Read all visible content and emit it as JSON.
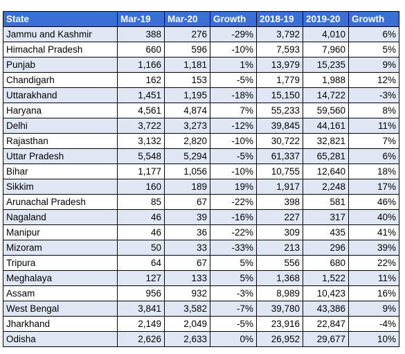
{
  "table": {
    "headers": [
      "State",
      "Mar-19",
      "Mar-20",
      "Growth",
      "2018-19",
      "2019-20",
      "Growth"
    ],
    "rows": [
      [
        "Jammu and Kashmir",
        "388",
        "276",
        "-29%",
        "3,792",
        "4,010",
        "6%"
      ],
      [
        "Himachal Pradesh",
        "660",
        "596",
        "-10%",
        "7,593",
        "7,960",
        "5%"
      ],
      [
        "Punjab",
        "1,166",
        "1,181",
        "1%",
        "13,979",
        "15,235",
        "9%"
      ],
      [
        "Chandigarh",
        "162",
        "153",
        "-5%",
        "1,779",
        "1,988",
        "12%"
      ],
      [
        "Uttarakhand",
        "1,451",
        "1,195",
        "-18%",
        "15,150",
        "14,722",
        "-3%"
      ],
      [
        "Haryana",
        "4,561",
        "4,874",
        "7%",
        "55,233",
        "59,560",
        "8%"
      ],
      [
        "Delhi",
        "3,722",
        "3,273",
        "-12%",
        "39,845",
        "44,161",
        "11%"
      ],
      [
        "Rajasthan",
        "3,132",
        "2,820",
        "-10%",
        "30,722",
        "32,821",
        "7%"
      ],
      [
        "Uttar Pradesh",
        "5,548",
        "5,294",
        "-5%",
        "61,337",
        "65,281",
        "6%"
      ],
      [
        "Bihar",
        "1,177",
        "1,056",
        "-10%",
        "10,755",
        "12,640",
        "18%"
      ],
      [
        "Sikkim",
        "160",
        "189",
        "19%",
        "1,917",
        "2,248",
        "17%"
      ],
      [
        "Arunachal Pradesh",
        "85",
        "67",
        "-22%",
        "398",
        "581",
        "46%"
      ],
      [
        "Nagaland",
        "46",
        "39",
        "-16%",
        "227",
        "317",
        "40%"
      ],
      [
        "Manipur",
        "46",
        "36",
        "-22%",
        "309",
        "435",
        "41%"
      ],
      [
        "Mizoram",
        "50",
        "33",
        "-33%",
        "213",
        "296",
        "39%"
      ],
      [
        "Tripura",
        "64",
        "67",
        "5%",
        "556",
        "680",
        "22%"
      ],
      [
        "Meghalaya",
        "127",
        "133",
        "5%",
        "1,368",
        "1,522",
        "11%"
      ],
      [
        "Assam",
        "956",
        "932",
        "-3%",
        "8,989",
        "10,423",
        "16%"
      ],
      [
        "West Bengal",
        "3,841",
        "3,582",
        "-7%",
        "39,780",
        "43,386",
        "9%"
      ],
      [
        "Jharkhand",
        "2,149",
        "2,049",
        "-5%",
        "23,916",
        "22,847",
        "-4%"
      ],
      [
        "Odisha",
        "2,626",
        "2,633",
        "0%",
        "26,952",
        "29,677",
        "10%"
      ]
    ]
  }
}
